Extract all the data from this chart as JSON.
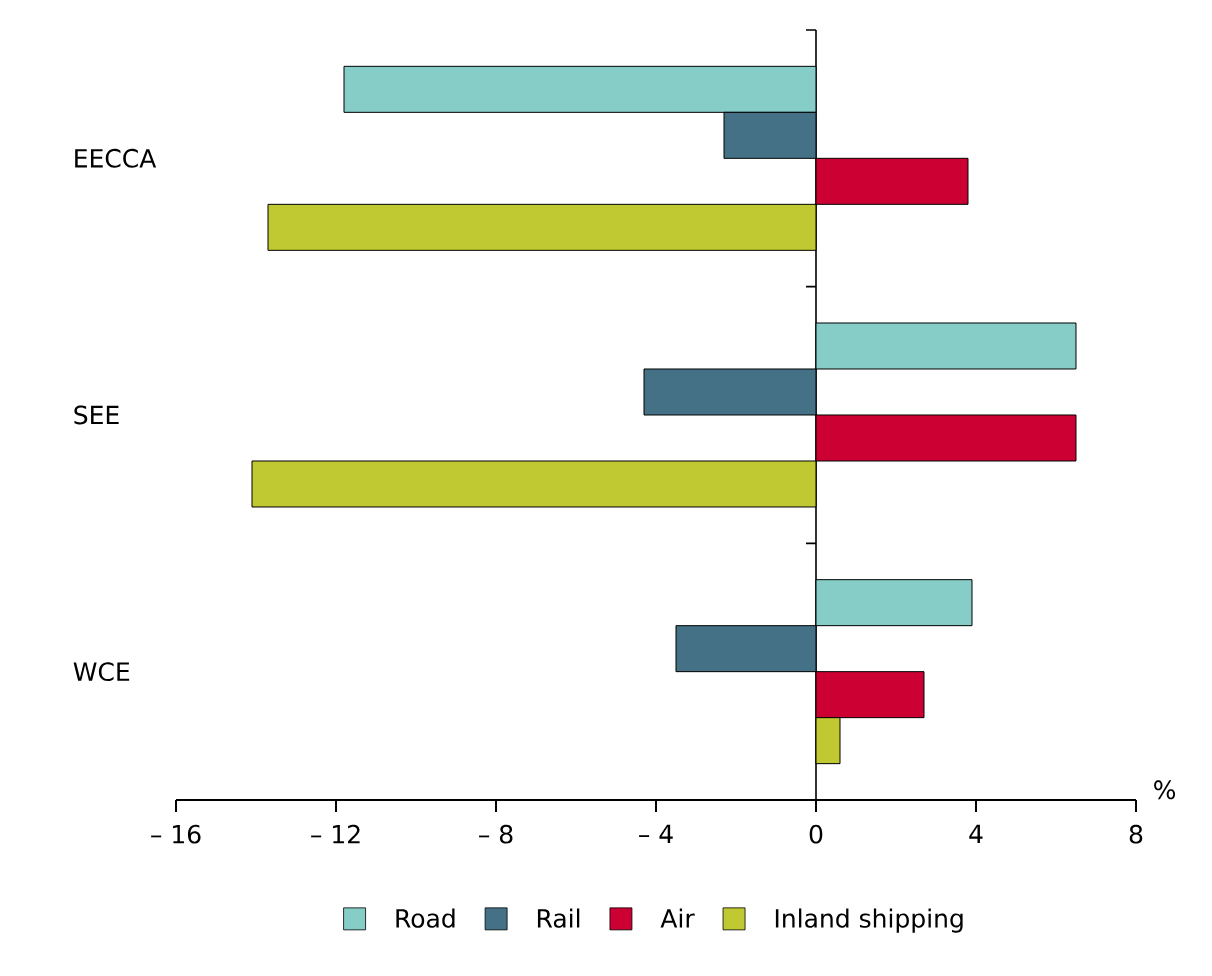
{
  "chart_data": {
    "type": "bar",
    "orientation": "horizontal",
    "xlabel": "%",
    "categories": [
      "EECCA",
      "SEE",
      "WCE"
    ],
    "series": [
      {
        "name": "Road",
        "color": "#86ccc7",
        "values": [
          -11.8,
          6.5,
          3.9
        ]
      },
      {
        "name": "Rail",
        "color": "#457186",
        "values": [
          -2.3,
          -4.3,
          -3.5
        ]
      },
      {
        "name": "Air",
        "color": "#cc0033",
        "values": [
          3.8,
          6.5,
          2.7
        ]
      },
      {
        "name": "Inland shipping",
        "color": "#c0c932",
        "values": [
          -13.7,
          -14.1,
          0.6
        ]
      }
    ],
    "xlim": [
      -16,
      8
    ],
    "xticks": [
      {
        "value": -16,
        "label": "– 16"
      },
      {
        "value": -12,
        "label": "– 12"
      },
      {
        "value": -8,
        "label": "– 8"
      },
      {
        "value": -4,
        "label": "– 4"
      },
      0,
      4,
      8
    ],
    "legend": "bottom"
  }
}
